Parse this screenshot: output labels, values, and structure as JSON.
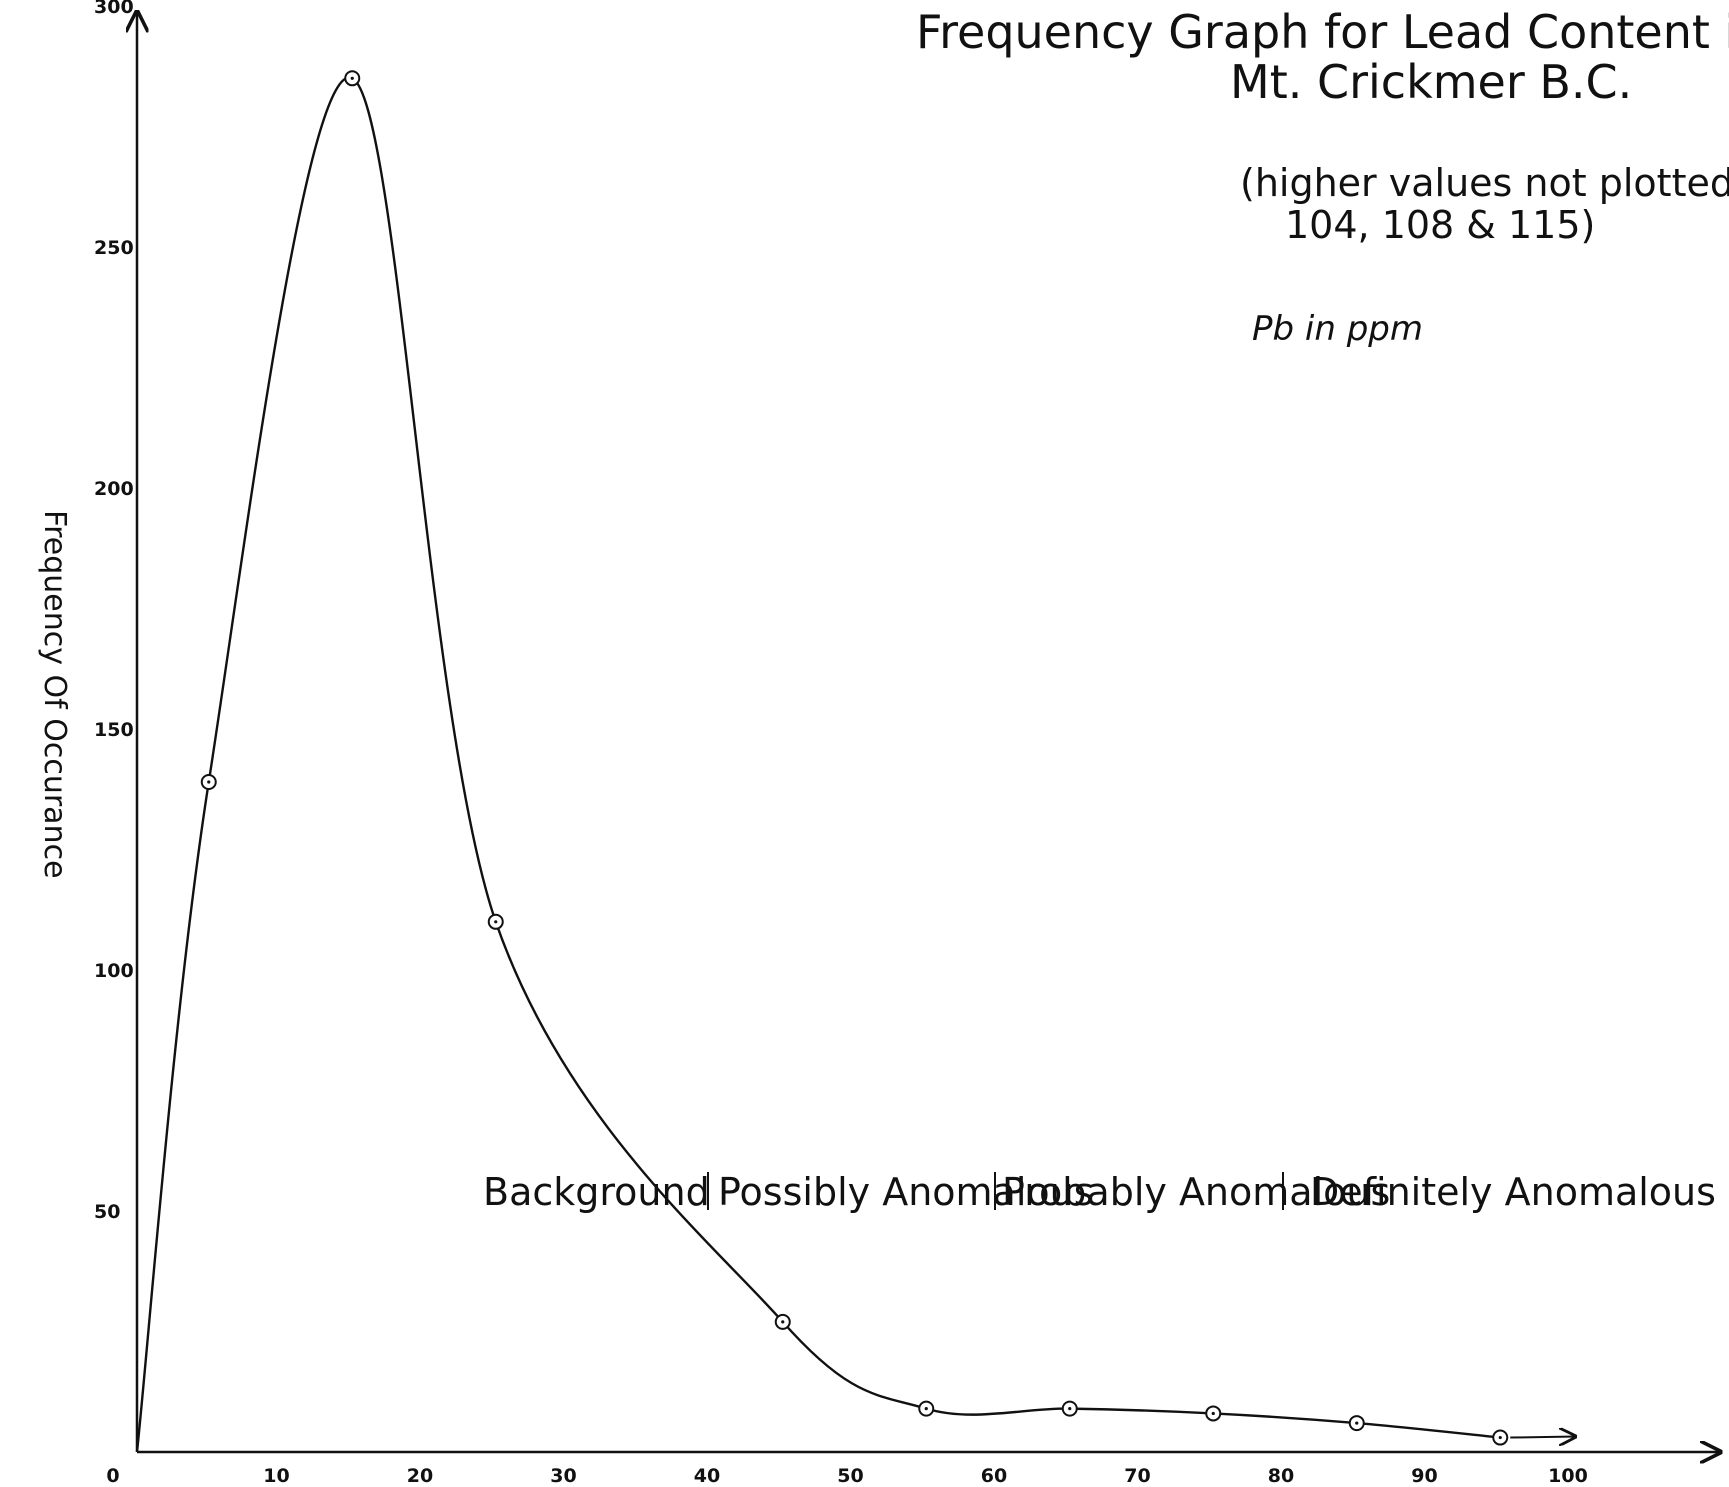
{
  "chart_data": {
    "type": "line",
    "title": "Frequency Graph for Lead Content in Sc",
    "subtitle": "Mt. Crickmer B.C.",
    "note_line1": "(higher values not plotted:",
    "note_line2": "104, 108 & 115)",
    "unit_label": "Pb in ppm",
    "xlabel": "",
    "ylabel": "Frequency Of Occurance",
    "xlim": [
      0,
      110
    ],
    "ylim": [
      0,
      310
    ],
    "x_ticks": [
      "0",
      "10",
      "20",
      "30",
      "40",
      "50",
      "60",
      "70",
      "80",
      "90",
      "100"
    ],
    "y_ticks": [
      "50",
      "100",
      "150",
      "200",
      "250",
      "300"
    ],
    "grid": false,
    "series": [
      {
        "x": [
          0,
          5,
          15,
          25,
          45,
          55,
          65,
          75,
          85,
          95
        ],
        "y": [
          0,
          139,
          285,
          110,
          27,
          9,
          9,
          8,
          6,
          3
        ]
      }
    ],
    "zones": [
      "Background",
      "Possibly Anomalous",
      "Probably Anomalous",
      "Definitely Anomalous"
    ]
  }
}
